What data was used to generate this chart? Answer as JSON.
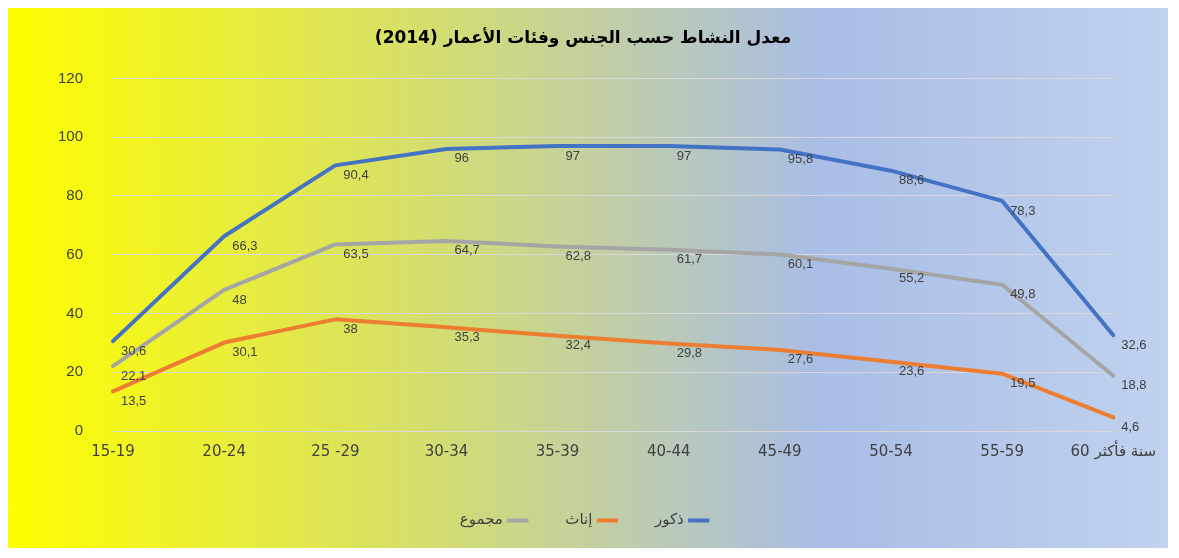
{
  "chart_data": {
    "type": "line",
    "title": "معدل النشاط حسب الجنس وفئات الأعمار (2014)",
    "categories": [
      "15-19",
      "20-24",
      "25 -29",
      "30-34",
      "35-39",
      "40-44",
      "45-49",
      "50-54",
      "55-59",
      "60 سنة فأكثر"
    ],
    "series": [
      {
        "name": "ذكور",
        "color": "#4472c4",
        "values": [
          30.6,
          66.3,
          90.4,
          96,
          97,
          97,
          95.8,
          88.6,
          78.3,
          32.6
        ],
        "value_labels": [
          "30,6",
          "66,3",
          "90,4",
          "96",
          "97",
          "97",
          "95,8",
          "88,6",
          "78,3",
          "32,6"
        ]
      },
      {
        "name": "إناث",
        "color": "#ed7d31",
        "values": [
          13.5,
          30.1,
          38,
          35.3,
          32.4,
          29.8,
          27.6,
          23.6,
          19.5,
          4.6
        ],
        "value_labels": [
          "13,5",
          "30,1",
          "38",
          "35,3",
          "32,4",
          "29,8",
          "27,6",
          "23,6",
          "19,5",
          "4,6"
        ]
      },
      {
        "name": "مجموع",
        "color": "#a5a5a5",
        "values": [
          22.1,
          48,
          63.5,
          64.7,
          62.8,
          61.7,
          60.1,
          55.2,
          49.8,
          18.8
        ],
        "value_labels": [
          "22,1",
          "48",
          "63,5",
          "64,7",
          "62,8",
          "61,7",
          "60,1",
          "55,2",
          "49,8",
          "18,8"
        ]
      }
    ],
    "ylim": [
      0,
      120
    ],
    "yticks": [
      0,
      20,
      40,
      60,
      80,
      100,
      120
    ],
    "grid": "y",
    "legend": "bottom",
    "marker": "none",
    "line_style": "solid"
  }
}
